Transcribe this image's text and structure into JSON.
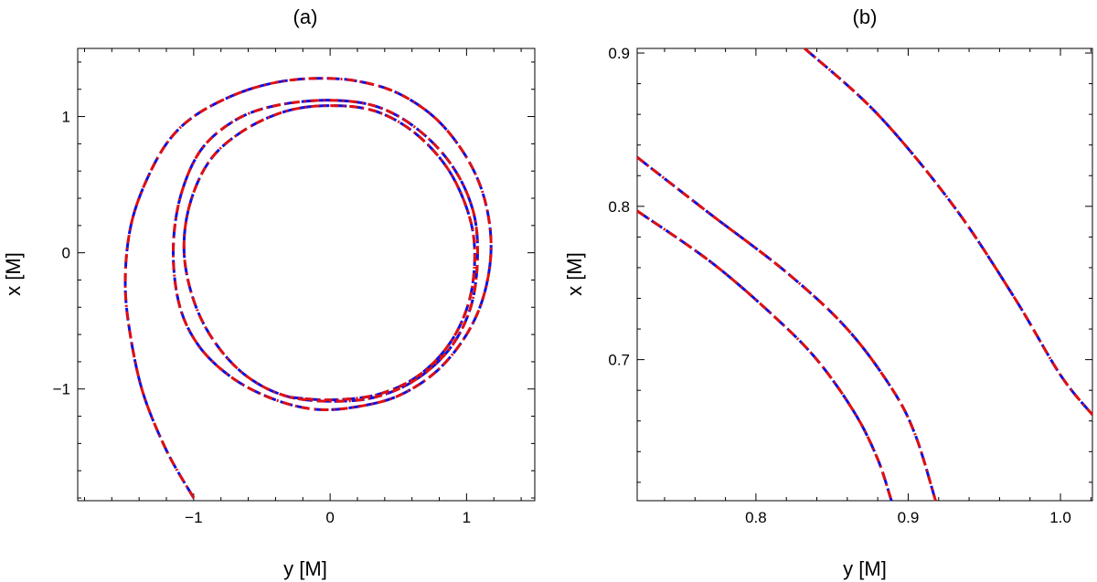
{
  "chart_data": [
    {
      "type": "line",
      "title": "(a)",
      "xlabel": "y [M]",
      "ylabel": "x [M]",
      "xlim": [
        -1.85,
        1.5
      ],
      "ylim": [
        -1.82,
        1.5
      ],
      "xticks": [
        -1,
        0,
        1
      ],
      "yticks": [
        -1,
        0,
        1
      ],
      "xtick_labels": [
        "−1",
        "0",
        "1"
      ],
      "ytick_labels": [
        "−1",
        "0",
        "1"
      ],
      "series": [
        {
          "name": "blue dashed",
          "color": "#1010e0",
          "points": [
            [
              -1.0,
              -1.8
            ],
            [
              -1.2,
              -1.45
            ],
            [
              -1.38,
              -1.0
            ],
            [
              -1.48,
              -0.5
            ],
            [
              -1.5,
              -0.15
            ],
            [
              -1.46,
              0.2
            ],
            [
              -1.36,
              0.5
            ],
            [
              -1.2,
              0.8
            ],
            [
              -1.0,
              1.0
            ],
            [
              -0.7,
              1.16
            ],
            [
              -0.4,
              1.25
            ],
            [
              -0.1,
              1.28
            ],
            [
              0.2,
              1.26
            ],
            [
              0.5,
              1.17
            ],
            [
              0.78,
              0.98
            ],
            [
              1.0,
              0.7
            ],
            [
              1.13,
              0.4
            ],
            [
              1.18,
              0.05
            ],
            [
              1.13,
              -0.3
            ],
            [
              1.0,
              -0.6
            ],
            [
              0.78,
              -0.87
            ],
            [
              0.5,
              -1.05
            ],
            [
              0.2,
              -1.13
            ],
            [
              -0.1,
              -1.15
            ],
            [
              -0.4,
              -1.08
            ],
            [
              -0.7,
              -0.93
            ],
            [
              -0.95,
              -0.7
            ],
            [
              -1.1,
              -0.4
            ],
            [
              -1.15,
              0.0
            ],
            [
              -1.1,
              0.4
            ],
            [
              -0.95,
              0.75
            ],
            [
              -0.7,
              0.97
            ],
            [
              -0.4,
              1.08
            ],
            [
              0.0,
              1.12
            ],
            [
              0.35,
              1.07
            ],
            [
              0.65,
              0.9
            ],
            [
              0.9,
              0.63
            ],
            [
              1.05,
              0.3
            ],
            [
              1.08,
              -0.05
            ],
            [
              1.03,
              -0.4
            ],
            [
              0.88,
              -0.7
            ],
            [
              0.63,
              -0.93
            ],
            [
              0.33,
              -1.06
            ],
            [
              0.0,
              -1.09
            ],
            [
              -0.33,
              -1.05
            ],
            [
              -0.62,
              -0.9
            ],
            [
              -0.85,
              -0.65
            ],
            [
              -1.0,
              -0.35
            ],
            [
              -1.07,
              0.0
            ],
            [
              -1.03,
              0.35
            ],
            [
              -0.88,
              0.68
            ],
            [
              -0.63,
              0.9
            ],
            [
              -0.32,
              1.04
            ],
            [
              0.0,
              1.08
            ],
            [
              0.33,
              1.04
            ],
            [
              0.62,
              0.88
            ],
            [
              0.86,
              0.62
            ],
            [
              1.01,
              0.3
            ],
            [
              1.06,
              0.0
            ],
            [
              1.02,
              -0.35
            ],
            [
              0.88,
              -0.66
            ],
            [
              0.65,
              -0.9
            ],
            [
              0.35,
              -1.04
            ],
            [
              0.0,
              -1.08
            ],
            [
              -0.3,
              -1.06
            ]
          ]
        },
        {
          "name": "red dash-dot",
          "color": "#e01010",
          "points": [
            [
              -1.0,
              -1.8
            ],
            [
              -1.2,
              -1.45
            ],
            [
              -1.38,
              -1.0
            ],
            [
              -1.48,
              -0.5
            ],
            [
              -1.5,
              -0.15
            ],
            [
              -1.46,
              0.2
            ],
            [
              -1.36,
              0.5
            ],
            [
              -1.2,
              0.8
            ],
            [
              -1.0,
              1.0
            ],
            [
              -0.7,
              1.16
            ],
            [
              -0.4,
              1.25
            ],
            [
              -0.1,
              1.28
            ],
            [
              0.2,
              1.26
            ],
            [
              0.5,
              1.17
            ],
            [
              0.78,
              0.98
            ],
            [
              1.0,
              0.7
            ],
            [
              1.13,
              0.4
            ],
            [
              1.18,
              0.05
            ],
            [
              1.13,
              -0.3
            ],
            [
              1.0,
              -0.6
            ],
            [
              0.78,
              -0.87
            ],
            [
              0.5,
              -1.05
            ],
            [
              0.2,
              -1.13
            ],
            [
              -0.1,
              -1.15
            ],
            [
              -0.4,
              -1.08
            ],
            [
              -0.7,
              -0.93
            ],
            [
              -0.95,
              -0.7
            ],
            [
              -1.1,
              -0.4
            ],
            [
              -1.15,
              0.0
            ],
            [
              -1.1,
              0.4
            ],
            [
              -0.95,
              0.75
            ],
            [
              -0.7,
              0.97
            ],
            [
              -0.4,
              1.08
            ],
            [
              0.0,
              1.12
            ],
            [
              0.35,
              1.07
            ],
            [
              0.65,
              0.9
            ],
            [
              0.9,
              0.63
            ],
            [
              1.05,
              0.3
            ],
            [
              1.08,
              -0.05
            ],
            [
              1.03,
              -0.4
            ],
            [
              0.88,
              -0.7
            ],
            [
              0.63,
              -0.93
            ],
            [
              0.33,
              -1.06
            ],
            [
              0.0,
              -1.09
            ],
            [
              -0.33,
              -1.05
            ],
            [
              -0.62,
              -0.9
            ],
            [
              -0.85,
              -0.65
            ],
            [
              -1.0,
              -0.35
            ],
            [
              -1.07,
              0.0
            ],
            [
              -1.03,
              0.35
            ],
            [
              -0.88,
              0.68
            ],
            [
              -0.63,
              0.9
            ],
            [
              -0.32,
              1.04
            ],
            [
              0.0,
              1.08
            ],
            [
              0.33,
              1.04
            ],
            [
              0.62,
              0.88
            ],
            [
              0.86,
              0.62
            ],
            [
              1.01,
              0.3
            ],
            [
              1.06,
              0.0
            ],
            [
              1.02,
              -0.35
            ],
            [
              0.88,
              -0.66
            ],
            [
              0.65,
              -0.9
            ],
            [
              0.35,
              -1.04
            ],
            [
              0.0,
              -1.08
            ],
            [
              -0.3,
              -1.06
            ]
          ]
        }
      ]
    },
    {
      "type": "line",
      "title": "(b)",
      "xlabel": "y [M]",
      "ylabel": "x [M]",
      "xlim": [
        0.722,
        1.021
      ],
      "ylim": [
        0.608,
        0.903
      ],
      "xticks": [
        0.8,
        0.9,
        1.0
      ],
      "yticks": [
        0.7,
        0.8,
        0.9
      ],
      "xtick_labels": [
        "0.8",
        "0.9",
        "1.0"
      ],
      "ytick_labels": [
        "0.7",
        "0.8",
        "0.9"
      ],
      "series": [
        {
          "name": "blue dashed",
          "color": "#1010e0",
          "curves": [
            [
              [
                0.832,
                0.903
              ],
              [
                0.88,
                0.86
              ],
              [
                0.93,
                0.8
              ],
              [
                0.97,
                0.74
              ],
              [
                1.0,
                0.69
              ],
              [
                1.021,
                0.664
              ]
            ],
            [
              [
                0.722,
                0.832
              ],
              [
                0.77,
                0.795
              ],
              [
                0.82,
                0.757
              ],
              [
                0.86,
                0.72
              ],
              [
                0.89,
                0.68
              ],
              [
                0.905,
                0.65
              ],
              [
                0.918,
                0.608
              ]
            ],
            [
              [
                0.722,
                0.797
              ],
              [
                0.77,
                0.764
              ],
              [
                0.81,
                0.73
              ],
              [
                0.84,
                0.7
              ],
              [
                0.865,
                0.665
              ],
              [
                0.88,
                0.635
              ],
              [
                0.889,
                0.608
              ]
            ]
          ]
        },
        {
          "name": "red dash-dot",
          "color": "#e01010",
          "curves": [
            [
              [
                0.832,
                0.903
              ],
              [
                0.88,
                0.86
              ],
              [
                0.93,
                0.8
              ],
              [
                0.97,
                0.74
              ],
              [
                1.0,
                0.69
              ],
              [
                1.021,
                0.664
              ]
            ],
            [
              [
                0.722,
                0.832
              ],
              [
                0.77,
                0.795
              ],
              [
                0.82,
                0.757
              ],
              [
                0.86,
                0.72
              ],
              [
                0.89,
                0.68
              ],
              [
                0.905,
                0.65
              ],
              [
                0.918,
                0.608
              ]
            ],
            [
              [
                0.722,
                0.797
              ],
              [
                0.77,
                0.764
              ],
              [
                0.81,
                0.73
              ],
              [
                0.84,
                0.7
              ],
              [
                0.865,
                0.665
              ],
              [
                0.88,
                0.635
              ],
              [
                0.889,
                0.608
              ]
            ]
          ]
        }
      ]
    }
  ]
}
